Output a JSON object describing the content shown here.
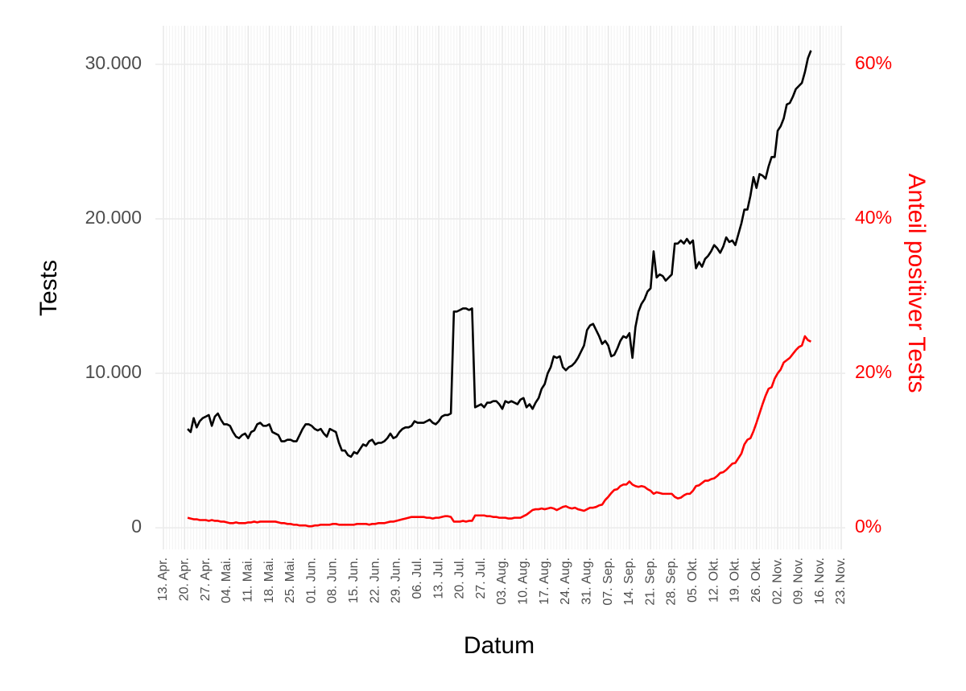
{
  "chart_data": {
    "type": "line",
    "xlabel": "Datum",
    "ylabel": "Tests",
    "y2label": "Anteil positiver Tests",
    "categories": [
      "13. Apr.",
      null,
      null,
      null,
      null,
      null,
      null,
      "20. Apr.",
      null,
      null,
      null,
      null,
      null,
      null,
      "27. Apr.",
      null,
      null,
      null,
      null,
      null,
      null,
      "04. Mai.",
      null,
      null,
      null,
      null,
      null,
      null,
      "11. Mai.",
      null,
      null,
      null,
      null,
      null,
      null,
      "18. Mai.",
      null,
      null,
      null,
      null,
      null,
      null,
      "25. Mai.",
      null,
      null,
      null,
      null,
      null,
      null,
      "01. Jun.",
      null,
      null,
      null,
      null,
      null,
      null,
      "08. Jun.",
      null,
      null,
      null,
      null,
      null,
      null,
      "15. Jun.",
      null,
      null,
      null,
      null,
      null,
      null,
      "22. Jun.",
      null,
      null,
      null,
      null,
      null,
      null,
      "29. Jun.",
      null,
      null,
      null,
      null,
      null,
      null,
      "06. Jul.",
      null,
      null,
      null,
      null,
      null,
      null,
      "13. Jul.",
      null,
      null,
      null,
      null,
      null,
      null,
      "20. Jul.",
      null,
      null,
      null,
      null,
      null,
      null,
      "27. Jul.",
      null,
      null,
      null,
      null,
      null,
      null,
      "03. Aug.",
      null,
      null,
      null,
      null,
      null,
      null,
      "10. Aug.",
      null,
      null,
      null,
      null,
      null,
      null,
      "17. Aug.",
      null,
      null,
      null,
      null,
      null,
      null,
      "24. Aug.",
      null,
      null,
      null,
      null,
      null,
      null,
      "31. Aug.",
      null,
      null,
      null,
      null,
      null,
      null,
      "07. Sep.",
      null,
      null,
      null,
      null,
      null,
      null,
      "14. Sep.",
      null,
      null,
      null,
      null,
      null,
      null,
      "21. Sep.",
      null,
      null,
      null,
      null,
      null,
      null,
      "28. Sep.",
      null,
      null,
      null,
      null,
      null,
      null,
      "05. Okt.",
      null,
      null,
      null,
      null,
      null,
      null,
      "12. Okt.",
      null,
      null,
      null,
      null,
      null,
      null,
      "19. Okt.",
      null,
      null,
      null,
      null,
      null,
      null,
      "26. Okt.",
      null,
      null,
      null,
      null,
      null,
      null,
      "02. Nov.",
      null,
      null,
      null,
      null,
      null,
      null,
      "09. Nov.",
      null,
      null,
      null,
      null,
      null,
      null,
      "16. Nov.",
      null,
      null,
      null,
      null,
      null,
      null,
      "23. Nov."
    ],
    "series": [
      {
        "color": "#000000",
        "values": [
          null,
          null,
          null,
          null,
          null,
          null,
          null,
          null,
          6400,
          6200,
          7100,
          6500,
          6900,
          7100,
          7200,
          7300,
          6600,
          7200,
          7400,
          7000,
          6700,
          6700,
          6600,
          6200,
          5900,
          5800,
          6000,
          6100,
          5800,
          6200,
          6300,
          6700,
          6800,
          6600,
          6600,
          6700,
          6200,
          6100,
          6000,
          5600,
          5600,
          5700,
          5700,
          5600,
          5600,
          6000,
          6400,
          6700,
          6700,
          6600,
          6400,
          6300,
          6400,
          6100,
          5900,
          6400,
          6300,
          6200,
          5500,
          5000,
          5000,
          4700,
          4600,
          4900,
          4800,
          5100,
          5400,
          5300,
          5600,
          5700,
          5400,
          5500,
          5500,
          5600,
          5800,
          6100,
          5800,
          5900,
          6200,
          6400,
          6500,
          6500,
          6600,
          6900,
          6800,
          6800,
          6800,
          6900,
          7000,
          6800,
          6700,
          6900,
          7200,
          7300,
          7300,
          7400,
          14000,
          14000,
          14100,
          14200,
          14200,
          14100,
          14200,
          7800,
          7900,
          8000,
          7800,
          8100,
          8100,
          8200,
          8200,
          8000,
          7700,
          8200,
          8100,
          8200,
          8100,
          8000,
          8300,
          8400,
          7800,
          8000,
          7700,
          8100,
          8400,
          9000,
          9300,
          10000,
          10400,
          11100,
          11000,
          11100,
          10400,
          10200,
          10400,
          10500,
          10700,
          11000,
          11400,
          11800,
          12800,
          13100,
          13200,
          12800,
          12400,
          11900,
          12100,
          11800,
          11100,
          11200,
          11600,
          12100,
          12400,
          12300,
          12600,
          11000,
          13000,
          14000,
          14500,
          14800,
          15300,
          15500,
          17900,
          16200,
          16400,
          16300,
          16000,
          16200,
          16400,
          18400,
          18400,
          18600,
          18400,
          18700,
          18400,
          18600,
          16800,
          17200,
          16900,
          17400,
          17600,
          17900,
          18300,
          18100,
          17800,
          18200,
          18800,
          18500,
          18600,
          18300,
          19000,
          19700,
          20600,
          20600,
          21500,
          22700,
          22000,
          22900,
          22800,
          22600,
          23400,
          24000,
          24000,
          25700,
          26000,
          26500,
          27400,
          27500,
          27900,
          28400,
          28600,
          28800,
          29500,
          30400,
          30900,
          null,
          null,
          null,
          null,
          null,
          null,
          null,
          null,
          null,
          null
        ]
      },
      {
        "color": "#ff0000",
        "axis": "y2",
        "values": [
          null,
          null,
          null,
          null,
          null,
          null,
          null,
          null,
          1.3,
          1.2,
          1.1,
          1.1,
          1.0,
          1.0,
          1.0,
          0.9,
          1.0,
          0.9,
          0.9,
          0.8,
          0.8,
          0.7,
          0.6,
          0.6,
          0.7,
          0.6,
          0.6,
          0.6,
          0.7,
          0.7,
          0.8,
          0.7,
          0.8,
          0.8,
          0.8,
          0.8,
          0.8,
          0.8,
          0.7,
          0.6,
          0.6,
          0.5,
          0.5,
          0.4,
          0.4,
          0.3,
          0.3,
          0.3,
          0.2,
          0.2,
          0.3,
          0.3,
          0.4,
          0.4,
          0.4,
          0.4,
          0.5,
          0.5,
          0.4,
          0.4,
          0.4,
          0.4,
          0.4,
          0.4,
          0.5,
          0.5,
          0.5,
          0.5,
          0.4,
          0.5,
          0.5,
          0.6,
          0.6,
          0.6,
          0.7,
          0.8,
          0.8,
          0.9,
          1.0,
          1.1,
          1.2,
          1.3,
          1.4,
          1.4,
          1.4,
          1.4,
          1.4,
          1.3,
          1.3,
          1.2,
          1.3,
          1.3,
          1.4,
          1.5,
          1.5,
          1.4,
          0.8,
          0.8,
          0.8,
          0.9,
          0.8,
          0.9,
          0.9,
          1.6,
          1.6,
          1.6,
          1.6,
          1.5,
          1.5,
          1.4,
          1.4,
          1.3,
          1.3,
          1.3,
          1.2,
          1.2,
          1.3,
          1.3,
          1.3,
          1.5,
          1.7,
          2.0,
          2.3,
          2.4,
          2.4,
          2.5,
          2.4,
          2.5,
          2.6,
          2.5,
          2.3,
          2.5,
          2.7,
          2.8,
          2.6,
          2.5,
          2.6,
          2.4,
          2.3,
          2.2,
          2.4,
          2.6,
          2.6,
          2.7,
          2.9,
          3.0,
          3.6,
          4.0,
          4.5,
          4.9,
          5.0,
          5.4,
          5.6,
          5.6,
          6.0,
          5.6,
          5.4,
          5.3,
          5.4,
          5.3,
          5.0,
          4.8,
          4.4,
          4.6,
          4.5,
          4.4,
          4.4,
          4.4,
          4.4,
          4.0,
          3.8,
          3.9,
          4.2,
          4.4,
          4.4,
          4.8,
          5.4,
          5.5,
          5.8,
          6.1,
          6.1,
          6.3,
          6.4,
          6.7,
          7.1,
          7.2,
          7.5,
          7.9,
          8.3,
          8.4,
          9.0,
          9.6,
          10.8,
          11.4,
          11.6,
          12.5,
          13.6,
          14.8,
          16.0,
          17.1,
          18.0,
          18.2,
          19.3,
          20.0,
          20.5,
          21.4,
          21.7,
          22.0,
          22.5,
          23.0,
          23.4,
          23.6,
          24.8,
          24.3,
          24.1,
          null,
          null,
          null,
          null,
          null,
          null,
          null,
          null,
          null,
          null
        ]
      }
    ],
    "ylim": [
      -1400,
      32500
    ],
    "yticks": [
      0,
      {
        "value": 10000,
        "label": "10.000"
      },
      {
        "value": 20000,
        "label": "20.000"
      },
      {
        "value": 30000,
        "label": "30.000"
      }
    ],
    "y2lim": [
      -2.8,
      65
    ],
    "y2ticks": [
      {
        "value": 0,
        "label": "0%"
      },
      {
        "value": 20,
        "label": "20%"
      },
      {
        "value": 40,
        "label": "40%"
      },
      {
        "value": 60,
        "label": "60%"
      }
    ],
    "grid": true
  }
}
